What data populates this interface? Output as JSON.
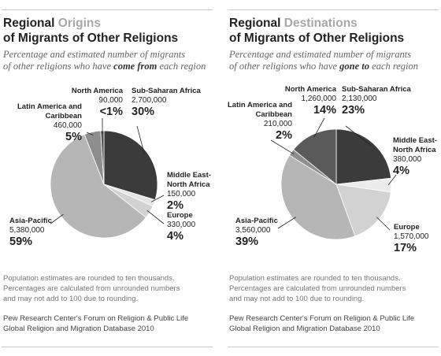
{
  "chart_data": [
    {
      "type": "pie",
      "title": {
        "lead": "Regional",
        "highlight": "Origins",
        "rest": "of Migrants of Other Religions"
      },
      "subtitle": [
        "Percentage and estimated number of migrants",
        "of other religions who have",
        "come from",
        "each region"
      ],
      "categories": [
        "Sub-Saharan Africa",
        "Middle East-North Africa",
        "Europe",
        "Asia-Pacific",
        "Latin America and Caribbean",
        "North America"
      ],
      "counts": [
        "2,700,000",
        "150,000",
        "330,000",
        "5,380,000",
        "460,000",
        "90,000"
      ],
      "values": [
        30,
        2,
        4,
        59,
        5,
        0.99
      ],
      "value_labels": [
        "30%",
        "2%",
        "4%",
        "59%",
        "5%",
        "<1%"
      ],
      "colors": [
        "#3b3b3b",
        "#e4e4e4",
        "#d2d2d2",
        "#b6b6b6",
        "#8e8e8e",
        "#555555"
      ],
      "note": [
        "Population estimates are rounded to ten thousands.",
        "Percentages are calculated from unrounded numbers",
        "and may not add to 100 due to rounding."
      ],
      "source": [
        "Pew Research Center's Forum on Religion & Public Life",
        "Global Religion and Migration Database 2010"
      ]
    },
    {
      "type": "pie",
      "title": {
        "lead": "Regional",
        "highlight": "Destinations",
        "rest": "of Migrants of Other Religions"
      },
      "subtitle": [
        "Percentage and estimated number of migrants",
        "of other religions who have",
        "gone to",
        "each region"
      ],
      "categories": [
        "Sub-Saharan Africa",
        "Middle East-North Africa",
        "Europe",
        "Asia-Pacific",
        "Latin America and Caribbean",
        "North America"
      ],
      "counts": [
        "2,130,000",
        "380,000",
        "1,570,000",
        "3,560,000",
        "210,000",
        "1,260,000"
      ],
      "values": [
        23,
        4,
        17,
        39,
        2,
        14
      ],
      "value_labels": [
        "23%",
        "4%",
        "17%",
        "39%",
        "2%",
        "14%"
      ],
      "colors": [
        "#3b3b3b",
        "#ececec",
        "#d2d2d2",
        "#b6b6b6",
        "#8e8e8e",
        "#5a5a5a"
      ],
      "note": [
        "Population estimates are rounded to ten thousands.",
        "Percentages are calculated from unrounded numbers",
        "and may not add to 100 due to rounding."
      ],
      "source": [
        "Pew Research Center's Forum on Religion & Public Life",
        "Global Religion and Migration Database 2010"
      ]
    }
  ]
}
